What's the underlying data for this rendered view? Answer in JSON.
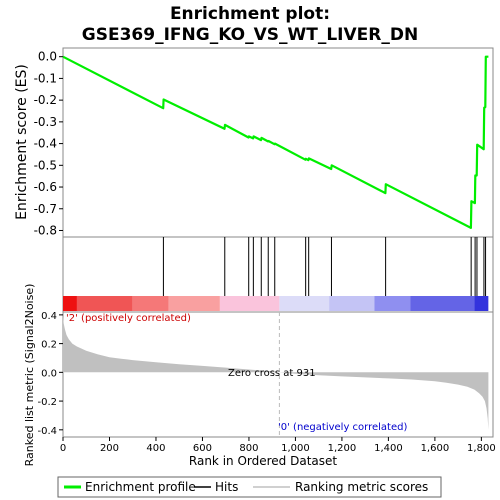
{
  "chart_data": [
    {
      "type": "line",
      "title": "Enrichment plot:",
      "subtitle": "GSE369_IFNG_KO_VS_WT_LIVER_DN",
      "ylabel": "Enrichment score (ES)",
      "xlim": [
        0,
        1850
      ],
      "ylim": [
        -0.83,
        0.04
      ],
      "yticks": [
        0.0,
        -0.1,
        -0.2,
        -0.3,
        -0.4,
        -0.5,
        -0.6,
        -0.7,
        -0.8
      ],
      "ytick_labels": [
        "0.0",
        "-0.1",
        "-0.2",
        "-0.3",
        "-0.4",
        "-0.5",
        "-0.6",
        "-0.7",
        "-0.8"
      ],
      "grid": false,
      "series": [
        {
          "name": "Enrichment profile",
          "color": "#00ee00",
          "x": [
            0,
            431,
            433,
            695,
            697,
            798,
            800,
            818,
            820,
            852,
            854,
            882,
            884,
            910,
            912,
            1043,
            1045,
            1056,
            1058,
            1154,
            1156,
            1387,
            1389,
            1755,
            1757,
            1772,
            1774,
            1780,
            1782,
            1810,
            1812,
            1817,
            1819,
            1830
          ],
          "y": [
            0.0,
            -0.237,
            -0.197,
            -0.332,
            -0.314,
            -0.372,
            -0.367,
            -0.376,
            -0.367,
            -0.384,
            -0.374,
            -0.39,
            -0.388,
            -0.403,
            -0.4,
            -0.474,
            -0.47,
            -0.476,
            -0.468,
            -0.517,
            -0.5,
            -0.628,
            -0.587,
            -0.788,
            -0.665,
            -0.674,
            -0.547,
            -0.547,
            -0.405,
            -0.426,
            -0.235,
            -0.232,
            0.0,
            0.0
          ]
        }
      ]
    },
    {
      "type": "hits",
      "name": "Hits",
      "xlim": [
        0,
        1850
      ],
      "hit_positions": [
        432,
        696,
        799,
        819,
        853,
        883,
        911,
        1044,
        1057,
        1155,
        1388,
        1756,
        1773,
        1781,
        1811,
        1818
      ],
      "color": "#000000"
    },
    {
      "type": "heatmap",
      "xlim": [
        0,
        1850
      ],
      "segments": [
        {
          "x0": 0,
          "x1": 60,
          "color": "#ee1111"
        },
        {
          "x0": 60,
          "x1": 300,
          "color": "#f05555"
        },
        {
          "x0": 300,
          "x1": 455,
          "color": "#f57878"
        },
        {
          "x0": 455,
          "x1": 675,
          "color": "#f9a0a0"
        },
        {
          "x0": 675,
          "x1": 931,
          "color": "#fac4dc"
        },
        {
          "x0": 931,
          "x1": 1145,
          "color": "#dcdcf8"
        },
        {
          "x0": 1145,
          "x1": 1340,
          "color": "#c4c4f5"
        },
        {
          "x0": 1340,
          "x1": 1495,
          "color": "#8f8ff0"
        },
        {
          "x0": 1495,
          "x1": 1770,
          "color": "#6464e6"
        },
        {
          "x0": 1770,
          "x1": 1830,
          "color": "#3333dd"
        }
      ]
    },
    {
      "type": "area",
      "ylabel": "Ranked list metric (Signal2Noise)",
      "xlabel": "Rank in Ordered Dataset",
      "xlim": [
        0,
        1850
      ],
      "ylim": [
        -0.45,
        0.42
      ],
      "xticks": [
        0,
        200,
        400,
        600,
        800,
        1000,
        1200,
        1400,
        1600,
        1800
      ],
      "xtick_labels": [
        "0",
        "200",
        "400",
        "600",
        "800",
        "1,000",
        "1,200",
        "1,400",
        "1,600",
        "1,800"
      ],
      "yticks": [
        0.4,
        0.2,
        0.0,
        -0.2,
        -0.4
      ],
      "ytick_labels": [
        "0.4",
        "0.2",
        "0.0",
        "-0.2",
        "-0.4"
      ],
      "zero_cross": 931,
      "annotations": {
        "zero_cross": "Zero cross at 931",
        "positive": "'2' (positively correlated)",
        "negative": "'0' (negatively correlated)"
      },
      "series": [
        {
          "name": "Ranking metric scores",
          "color": "#c0c0c0",
          "x": [
            0,
            3,
            8,
            15,
            25,
            40,
            60,
            80,
            100,
            150,
            200,
            250,
            300,
            400,
            500,
            600,
            700,
            800,
            900,
            931,
            1000,
            1100,
            1200,
            1300,
            1400,
            1500,
            1600,
            1650,
            1700,
            1740,
            1770,
            1790,
            1805,
            1815,
            1822,
            1827,
            1830
          ],
          "y": [
            0.39,
            0.34,
            0.3,
            0.26,
            0.23,
            0.2,
            0.18,
            0.165,
            0.15,
            0.125,
            0.105,
            0.095,
            0.085,
            0.07,
            0.057,
            0.045,
            0.033,
            0.02,
            0.007,
            0.0,
            -0.01,
            -0.02,
            -0.028,
            -0.035,
            -0.042,
            -0.05,
            -0.062,
            -0.072,
            -0.085,
            -0.1,
            -0.12,
            -0.145,
            -0.17,
            -0.2,
            -0.25,
            -0.32,
            -0.4
          ]
        }
      ]
    }
  ],
  "legend": {
    "items": [
      {
        "label": "Enrichment profile",
        "color": "#00ee00",
        "kind": "thick-line"
      },
      {
        "label": "Hits",
        "color": "#000000",
        "kind": "thin-line"
      },
      {
        "label": "Ranking metric scores",
        "color": "#c0c0c0",
        "kind": "thin-line"
      }
    ]
  }
}
